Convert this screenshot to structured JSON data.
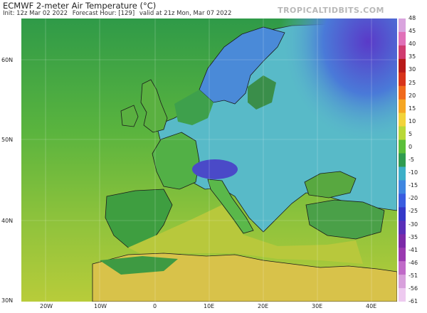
{
  "header": {
    "title": "ECMWF 2-meter Air Temperature (°C)",
    "init": "Init: 12z Mar 02 2022",
    "forecast": "Forecast Hour: [129]",
    "valid": "valid at 21z Mon, Mar 07 2022",
    "brand": "TROPICALTIDBITS.COM"
  },
  "map": {
    "lat_labels": [
      "60N",
      "50N",
      "40N",
      "30N"
    ],
    "lon_labels": [
      "20W",
      "10W",
      "0",
      "10E",
      "20E",
      "30E",
      "40E"
    ],
    "colorbar": {
      "labels": [
        "48",
        "45",
        "40",
        "35",
        "30",
        "25",
        "20",
        "15",
        "10",
        "5",
        "0",
        "-5",
        "-10",
        "-15",
        "-20",
        "-25",
        "-30",
        "-35",
        "-41",
        "-46",
        "-51",
        "-56",
        "-61"
      ],
      "colors": [
        "#d9a4de",
        "#e070b8",
        "#d03c70",
        "#b81a1a",
        "#d8331a",
        "#f06a1c",
        "#f5a623",
        "#f2d33a",
        "#b8d838",
        "#5bbf3a",
        "#2f9c50",
        "#3db0c8",
        "#3f86e0",
        "#3a5de0",
        "#3438c8",
        "#5a2fb8",
        "#7c2aa8",
        "#9a3ab0",
        "#c06ac8",
        "#d8a0dc",
        "#eecaf0"
      ]
    },
    "region_colors": {
      "ocean_south": "#a8c83a",
      "ocean_mid": "#6ab83c",
      "ocean_north": "#38a04a",
      "land_warm": "#5ab23e",
      "land_cool": "#5cc0c8",
      "land_cold": "#4a96d8",
      "land_very_cold": "#5a4ad0",
      "africa": "#d8c048",
      "iberia": "#3e9e40",
      "alps": "#5050c8"
    }
  }
}
